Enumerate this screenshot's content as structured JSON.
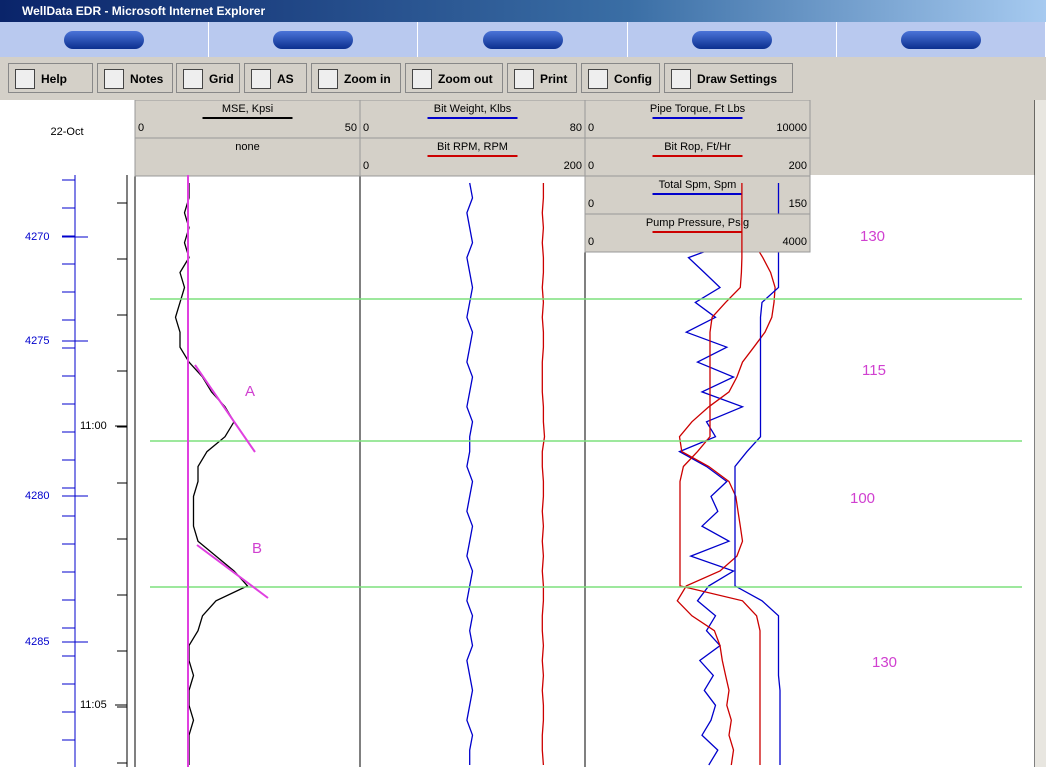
{
  "window": {
    "title": "WellData EDR - Microsoft Internet Explorer"
  },
  "toolbar": [
    "Help",
    "Notes",
    "Grid",
    "AS",
    "Zoom in",
    "Zoom out",
    "Print",
    "Config",
    "Draw Settings"
  ],
  "depth_track": {
    "date": "22-Oct",
    "depths": [
      4270,
      4275,
      4280,
      4285
    ],
    "times": [
      "11:00",
      "11:05"
    ]
  },
  "tracks": [
    {
      "curves": [
        {
          "name": "MSE, Kpsi",
          "min": 0,
          "max": 50,
          "color": "#000000",
          "values": [
            12,
            12,
            11,
            12,
            11,
            12,
            10,
            11,
            10,
            9,
            10,
            10,
            12,
            15,
            17,
            20,
            22,
            20,
            16,
            14,
            14,
            13,
            13,
            13,
            14,
            18,
            22,
            25,
            18,
            15,
            14,
            12,
            12,
            13,
            12,
            12,
            13,
            12,
            12,
            12
          ]
        },
        {
          "name": "none"
        }
      ]
    },
    {
      "curves": [
        {
          "name": "Bit Weight, Klbs",
          "min": 0,
          "max": 80,
          "color": "#0000cc",
          "values": [
            39,
            40,
            38,
            39,
            40,
            38,
            39,
            40,
            39,
            38,
            40,
            39,
            38,
            40,
            39,
            38,
            40,
            39,
            39,
            38,
            40,
            39,
            38,
            40,
            39,
            38,
            40,
            39,
            38,
            40,
            39,
            40,
            38,
            39,
            40,
            39,
            38,
            40,
            39,
            39
          ]
        },
        {
          "name": "Bit RPM, RPM",
          "min": 0,
          "max": 200,
          "color": "#cc0000",
          "values": [
            163,
            163,
            162,
            163,
            162,
            163,
            163,
            162,
            163,
            162,
            163,
            163,
            162,
            162,
            162,
            163,
            163,
            164,
            162,
            162,
            163,
            163,
            162,
            163,
            162,
            163,
            162,
            163,
            163,
            162,
            162,
            163,
            162,
            163,
            162,
            163,
            163,
            162,
            162,
            163
          ]
        }
      ]
    },
    {
      "curves": [
        {
          "name": "Pipe Torque, Ft Lbs",
          "min": 0,
          "max": 10000,
          "color": "#0000cc",
          "values": [
            5200,
            6200,
            4800,
            5600,
            6400,
            4600,
            5300,
            6000,
            4900,
            5800,
            4500,
            6300,
            5000,
            6600,
            5200,
            7000,
            5400,
            5800,
            4200,
            5400,
            6300,
            5600,
            5900,
            5200,
            6400,
            4700,
            6600,
            5500,
            5000,
            5800,
            5400,
            6000,
            5100,
            5700,
            5300,
            5800,
            5600,
            5200,
            5900,
            5500
          ]
        },
        {
          "name": "Bit Rop, Ft/Hr",
          "min": 0,
          "max": 200,
          "color": "#cc0000",
          "values": [
            133,
            134,
            135,
            140,
            150,
            158,
            165,
            169,
            168,
            166,
            160,
            150,
            140,
            135,
            128,
            110,
            95,
            84,
            86,
            110,
            128,
            134,
            136,
            138,
            140,
            135,
            120,
            90,
            82,
            95,
            115,
            120,
            122,
            125,
            128,
            126,
            130,
            128,
            132,
            130
          ]
        },
        {
          "name": "Total Spm, Spm",
          "min": 0,
          "max": 150,
          "color": "#0000cc",
          "values": [
            129,
            129,
            129,
            129,
            129,
            129,
            129,
            129,
            118,
            117,
            117,
            117,
            117,
            117,
            117,
            117,
            117,
            117,
            108,
            100,
            100,
            100,
            100,
            100,
            100,
            100,
            100,
            100,
            118,
            129,
            129,
            129,
            129,
            129,
            130,
            130,
            130,
            130,
            130,
            130
          ]
        },
        {
          "name": "Pump Pressure, Psig",
          "min": 0,
          "max": 4000,
          "color": "#cc0000",
          "values": [
            2790,
            2790,
            2790,
            2790,
            2790,
            2790,
            2780,
            2760,
            2500,
            2260,
            2222,
            2222,
            2222,
            2222,
            2222,
            2222,
            2222,
            2222,
            2000,
            1750,
            1689,
            1689,
            1689,
            1689,
            1689,
            1689,
            1689,
            1689,
            2800,
            3050,
            3111,
            3111,
            3111,
            3111,
            3111,
            3111,
            3111,
            3111,
            3111,
            3111
          ]
        }
      ]
    }
  ],
  "annotations": [
    "A",
    "B",
    "130",
    "115",
    "100",
    "130"
  ]
}
